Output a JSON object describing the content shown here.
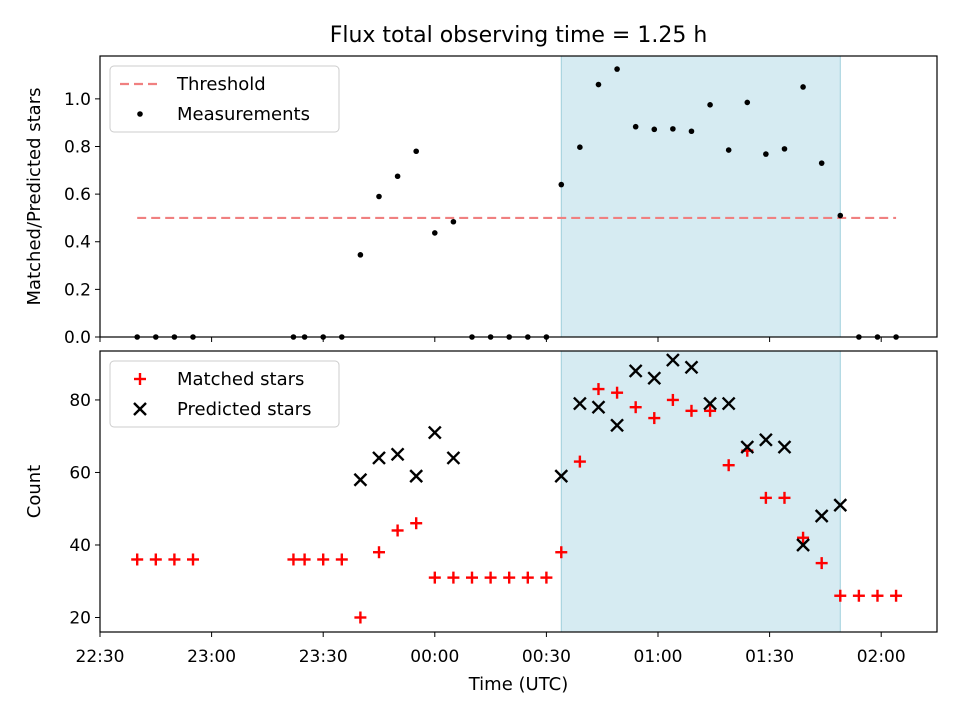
{
  "figure": {
    "title": "Flux total observing time = 1.25 h"
  },
  "chart_data": [
    {
      "type": "scatter",
      "panel": "top",
      "title": "Flux total observing time = 1.25 h",
      "xlabel": "",
      "ylabel": "Matched/Predicted stars",
      "x_is_time": true,
      "xlim": [
        "22:30",
        "02:15"
      ],
      "ylim": [
        0,
        1.18
      ],
      "yticks": [
        0.0,
        0.2,
        0.4,
        0.6,
        0.8,
        1.0
      ],
      "ytick_labels": [
        "0.0",
        "0.2",
        "0.4",
        "0.6",
        "0.8",
        "1.0"
      ],
      "shaded_region": {
        "x0": "00:34",
        "x1": "01:49",
        "color": "#add8e6"
      },
      "legend_position": "upper left",
      "series": [
        {
          "name": "Threshold",
          "kind": "dashed-line",
          "color": "#f08080",
          "x": [
            "22:40",
            "02:04"
          ],
          "y": [
            0.5,
            0.5
          ]
        },
        {
          "name": "Measurements",
          "kind": "dot",
          "color": "#000000",
          "x": [
            "22:40",
            "22:45",
            "22:50",
            "22:55",
            "23:22",
            "23:25",
            "23:30",
            "23:35",
            "23:40",
            "23:45",
            "23:50",
            "23:55",
            "00:00",
            "00:05",
            "00:10",
            "00:15",
            "00:20",
            "00:25",
            "00:30",
            "00:34",
            "00:39",
            "00:44",
            "00:49",
            "00:54",
            "00:59",
            "01:04",
            "01:09",
            "01:14",
            "01:19",
            "01:24",
            "01:29",
            "01:34",
            "01:39",
            "01:44",
            "01:49",
            "01:54",
            "01:59",
            "02:04"
          ],
          "y": [
            0,
            0,
            0,
            0,
            0,
            0,
            0,
            0,
            0.345,
            0.59,
            0.675,
            0.78,
            0.437,
            0.484,
            0,
            0,
            0,
            0,
            0,
            0.64,
            0.797,
            1.06,
            1.125,
            0.883,
            0.872,
            0.874,
            0.864,
            0.975,
            0.785,
            0.985,
            0.768,
            0.79,
            1.05,
            0.73,
            0.51,
            0,
            0,
            0
          ]
        }
      ]
    },
    {
      "type": "scatter",
      "panel": "bottom",
      "xlabel": "Time (UTC)",
      "ylabel": "Count",
      "x_is_time": true,
      "xlim": [
        "22:30",
        "02:15"
      ],
      "ylim": [
        16,
        93.5
      ],
      "xticks": [
        "22:30",
        "23:00",
        "23:30",
        "00:00",
        "00:30",
        "01:00",
        "01:30",
        "02:00"
      ],
      "yticks": [
        20,
        40,
        60,
        80
      ],
      "ytick_labels": [
        "20",
        "40",
        "60",
        "80"
      ],
      "shaded_region": {
        "x0": "00:34",
        "x1": "01:49",
        "color": "#add8e6"
      },
      "legend_position": "upper left",
      "series": [
        {
          "name": "Matched stars",
          "kind": "plus",
          "color": "#ff0000",
          "x": [
            "22:40",
            "22:45",
            "22:50",
            "22:55",
            "23:22",
            "23:25",
            "23:30",
            "23:35",
            "23:40",
            "23:45",
            "23:50",
            "23:55",
            "00:00",
            "00:05",
            "00:10",
            "00:15",
            "00:20",
            "00:25",
            "00:30",
            "00:34",
            "00:39",
            "00:44",
            "00:49",
            "00:54",
            "00:59",
            "01:04",
            "01:09",
            "01:14",
            "01:19",
            "01:24",
            "01:29",
            "01:34",
            "01:39",
            "01:44",
            "01:49",
            "01:54",
            "01:59",
            "02:04"
          ],
          "y": [
            36,
            36,
            36,
            36,
            36,
            36,
            36,
            36,
            20,
            38,
            44,
            46,
            31,
            31,
            31,
            31,
            31,
            31,
            31,
            38,
            63,
            83,
            82,
            78,
            75,
            80,
            77,
            77,
            62,
            66,
            53,
            53,
            42,
            35,
            26,
            26,
            26,
            26
          ]
        },
        {
          "name": "Predicted stars",
          "kind": "x",
          "color": "#000000",
          "x": [
            "23:40",
            "23:45",
            "23:50",
            "23:55",
            "00:00",
            "00:05",
            "00:34",
            "00:39",
            "00:44",
            "00:49",
            "00:54",
            "00:59",
            "01:04",
            "01:09",
            "01:14",
            "01:19",
            "01:24",
            "01:29",
            "01:34",
            "01:39",
            "01:44",
            "01:49"
          ],
          "y": [
            58,
            64,
            65,
            59,
            71,
            64,
            59,
            79,
            78,
            73,
            88,
            86,
            91,
            89,
            79,
            79,
            67,
            69,
            67,
            40,
            48,
            51
          ]
        }
      ]
    }
  ]
}
